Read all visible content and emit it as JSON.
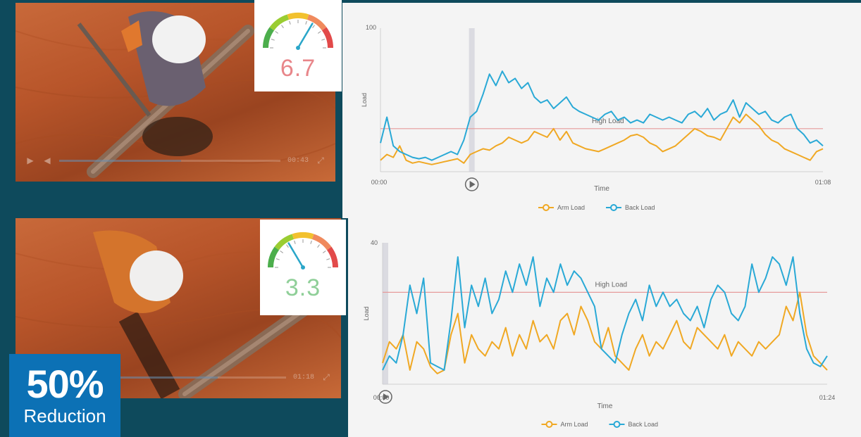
{
  "videos": [
    {
      "time": "00:43",
      "progress": 0.55
    },
    {
      "time": "01:18",
      "progress": 0.7
    }
  ],
  "gauges": [
    {
      "value": "6.7",
      "level": 0.67,
      "color": "#e8868a",
      "needle_color": "#2aa6c9"
    },
    {
      "value": "3.3",
      "level": 0.33,
      "color": "#8fcf98",
      "needle_color": "#2aa6c9"
    }
  ],
  "badge": {
    "value": "50%",
    "label": "Reduction"
  },
  "legend": {
    "arm": "Arm Load",
    "back": "Back Load"
  },
  "colors": {
    "arm": "#f0a823",
    "back": "#29a9d6",
    "threshold": "#e69a9a",
    "marker": "#c9c9d4",
    "background": "#0e4a5c",
    "badge": "#0c71b5"
  },
  "chart_data": [
    {
      "type": "line",
      "title": "",
      "xlabel": "Time",
      "ylabel": "Load",
      "x_ticks": [
        "00:00",
        "01:08"
      ],
      "ylim": [
        0,
        100
      ],
      "y_ticks": [
        "100"
      ],
      "threshold": {
        "label": "High Load",
        "value": 30
      },
      "marker": {
        "fraction": 0.2
      },
      "series": [
        {
          "name": "Arm Load",
          "key": "arm",
          "values": [
            8,
            12,
            10,
            18,
            8,
            6,
            7,
            6,
            5,
            6,
            7,
            8,
            9,
            6,
            12,
            14,
            16,
            15,
            18,
            20,
            24,
            22,
            20,
            22,
            28,
            26,
            24,
            30,
            22,
            28,
            20,
            18,
            16,
            15,
            14,
            16,
            18,
            20,
            22,
            25,
            26,
            24,
            20,
            18,
            14,
            16,
            18,
            22,
            26,
            30,
            28,
            25,
            24,
            22,
            30,
            38,
            34,
            40,
            36,
            32,
            26,
            22,
            20,
            16,
            14,
            12,
            10,
            8,
            14,
            16
          ]
        },
        {
          "name": "Back Load",
          "key": "back",
          "values": [
            20,
            38,
            18,
            14,
            12,
            10,
            9,
            10,
            8,
            10,
            12,
            14,
            12,
            22,
            38,
            42,
            54,
            68,
            60,
            70,
            62,
            65,
            58,
            62,
            52,
            48,
            50,
            44,
            48,
            52,
            45,
            42,
            40,
            38,
            36,
            40,
            42,
            36,
            38,
            34,
            36,
            34,
            40,
            38,
            36,
            38,
            36,
            34,
            40,
            42,
            38,
            44,
            36,
            40,
            42,
            50,
            38,
            48,
            44,
            40,
            42,
            36,
            34,
            38,
            40,
            30,
            26,
            20,
            22,
            18
          ]
        }
      ]
    },
    {
      "type": "line",
      "title": "",
      "xlabel": "Time",
      "ylabel": "Load",
      "x_ticks": [
        "00:00",
        "01:24"
      ],
      "ylim": [
        0,
        40
      ],
      "y_ticks": [
        "40"
      ],
      "threshold": {
        "label": "High Load",
        "value": 26
      },
      "marker": {
        "fraction": 0.0
      },
      "series": [
        {
          "name": "Arm Load",
          "key": "arm",
          "values": [
            6,
            12,
            10,
            14,
            4,
            12,
            10,
            5,
            3,
            4,
            14,
            20,
            6,
            14,
            10,
            8,
            12,
            10,
            16,
            8,
            14,
            10,
            18,
            12,
            14,
            10,
            18,
            20,
            14,
            22,
            18,
            12,
            10,
            16,
            8,
            6,
            4,
            10,
            14,
            8,
            12,
            10,
            14,
            18,
            12,
            10,
            16,
            14,
            12,
            10,
            14,
            8,
            12,
            10,
            8,
            12,
            10,
            12,
            14,
            22,
            18,
            26,
            14,
            8,
            6,
            4
          ]
        },
        {
          "name": "Back Load",
          "key": "back",
          "values": [
            4,
            8,
            6,
            14,
            28,
            20,
            30,
            6,
            5,
            4,
            18,
            36,
            16,
            28,
            22,
            30,
            20,
            24,
            32,
            26,
            34,
            28,
            36,
            22,
            30,
            26,
            34,
            28,
            32,
            30,
            26,
            22,
            10,
            8,
            6,
            14,
            20,
            24,
            18,
            28,
            22,
            26,
            22,
            24,
            20,
            18,
            22,
            16,
            24,
            28,
            26,
            20,
            18,
            22,
            34,
            26,
            30,
            36,
            34,
            28,
            36,
            20,
            10,
            6,
            5,
            8
          ]
        }
      ]
    }
  ]
}
